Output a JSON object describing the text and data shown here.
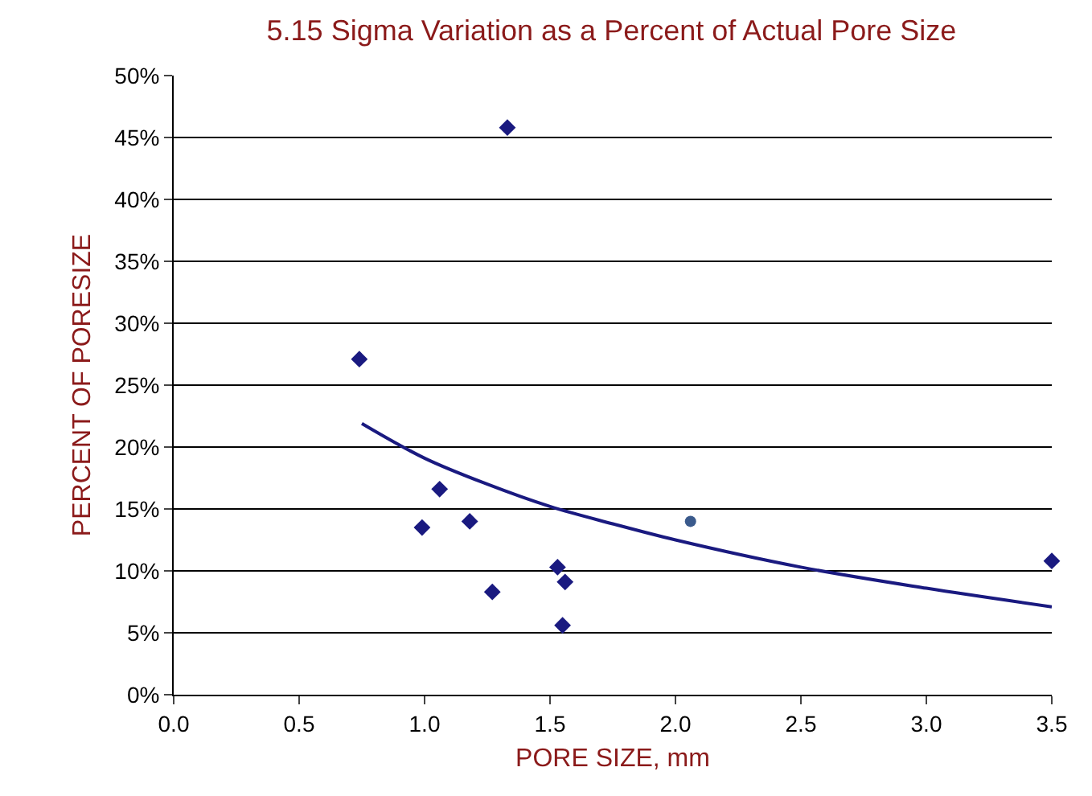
{
  "chart_data": {
    "type": "scatter",
    "title": "5.15 Sigma Variation as a Percent of Actual Pore Size",
    "xlabel": "PORE SIZE, mm",
    "ylabel": "PERCENT OF PORESIZE",
    "series": [
      {
        "color": "#1a1a80",
        "marker": "diamond",
        "x": [
          0.74,
          1.33,
          0.99,
          1.06,
          1.18,
          1.27,
          1.53,
          1.56,
          1.55,
          3.5
        ],
        "values": [
          27.1,
          45.8,
          13.5,
          16.6,
          14.0,
          8.3,
          10.3,
          9.1,
          5.6,
          10.8
        ]
      },
      {
        "color": "#3a5a8c",
        "marker": "circle",
        "x": [
          2.06
        ],
        "values": [
          14.0
        ]
      },
      {
        "type": "line",
        "color": "#1a1a80",
        "marker": "none",
        "x": [
          0.75,
          1.0,
          1.25,
          1.5,
          1.75,
          2.0,
          2.5,
          3.0,
          3.5
        ],
        "values": [
          21.9,
          19.1,
          17.0,
          15.2,
          13.8,
          12.5,
          10.3,
          8.6,
          7.1
        ]
      }
    ],
    "xlim": [
      0,
      3.5
    ],
    "xticks": [
      {
        "value": 0,
        "label": "0.0"
      },
      0.5,
      {
        "value": 1,
        "label": "1.0"
      },
      1.5,
      {
        "value": 2,
        "label": "2.0"
      },
      2.5,
      {
        "value": 3,
        "label": "3.0"
      },
      3.5
    ],
    "ylim": [
      0,
      50
    ],
    "yticks": [
      {
        "value": 0,
        "label": "0%"
      },
      {
        "value": 5,
        "label": "5%"
      },
      {
        "value": 10,
        "label": "10%"
      },
      {
        "value": 15,
        "label": "15%"
      },
      {
        "value": 20,
        "label": "20%"
      },
      {
        "value": 25,
        "label": "25%"
      },
      {
        "value": 30,
        "label": "30%"
      },
      {
        "value": 35,
        "label": "35%"
      },
      {
        "value": 40,
        "label": "40%"
      },
      {
        "value": 45,
        "label": "45%"
      },
      {
        "value": 50,
        "label": "50%"
      }
    ],
    "grid": "y"
  }
}
